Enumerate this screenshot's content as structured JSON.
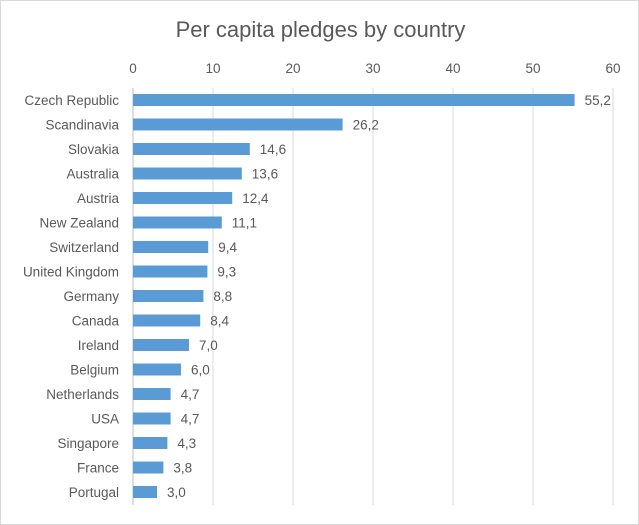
{
  "chart_data": {
    "type": "bar",
    "orientation": "horizontal",
    "title": "Per capita pledges by country",
    "xlabel": "",
    "ylabel": "",
    "xlim": [
      0,
      60
    ],
    "xticks": [
      "0",
      "10",
      "20",
      "30",
      "40",
      "50",
      "60"
    ],
    "grid": true,
    "bar_color": "#5b9bd5",
    "categories": [
      "Czech Republic",
      "Scandinavia",
      "Slovakia",
      "Australia",
      "Austria",
      "New Zealand",
      "Switzerland",
      "United Kingdom",
      "Germany",
      "Canada",
      "Ireland",
      "Belgium",
      "Netherlands",
      "USA",
      "Singapore",
      "France",
      "Portugal"
    ],
    "values": [
      55.2,
      26.2,
      14.6,
      13.6,
      12.4,
      11.1,
      9.4,
      9.3,
      8.8,
      8.4,
      7.0,
      6.0,
      4.7,
      4.7,
      4.3,
      3.8,
      3.0
    ],
    "data_labels": [
      "55,2",
      "26,2",
      "14,6",
      "13,6",
      "12,4",
      "11,1",
      "9,4",
      "9,3",
      "8,8",
      "8,4",
      "7,0",
      "6,0",
      "4,7",
      "4,7",
      "4,3",
      "3,8",
      "3,0"
    ]
  }
}
